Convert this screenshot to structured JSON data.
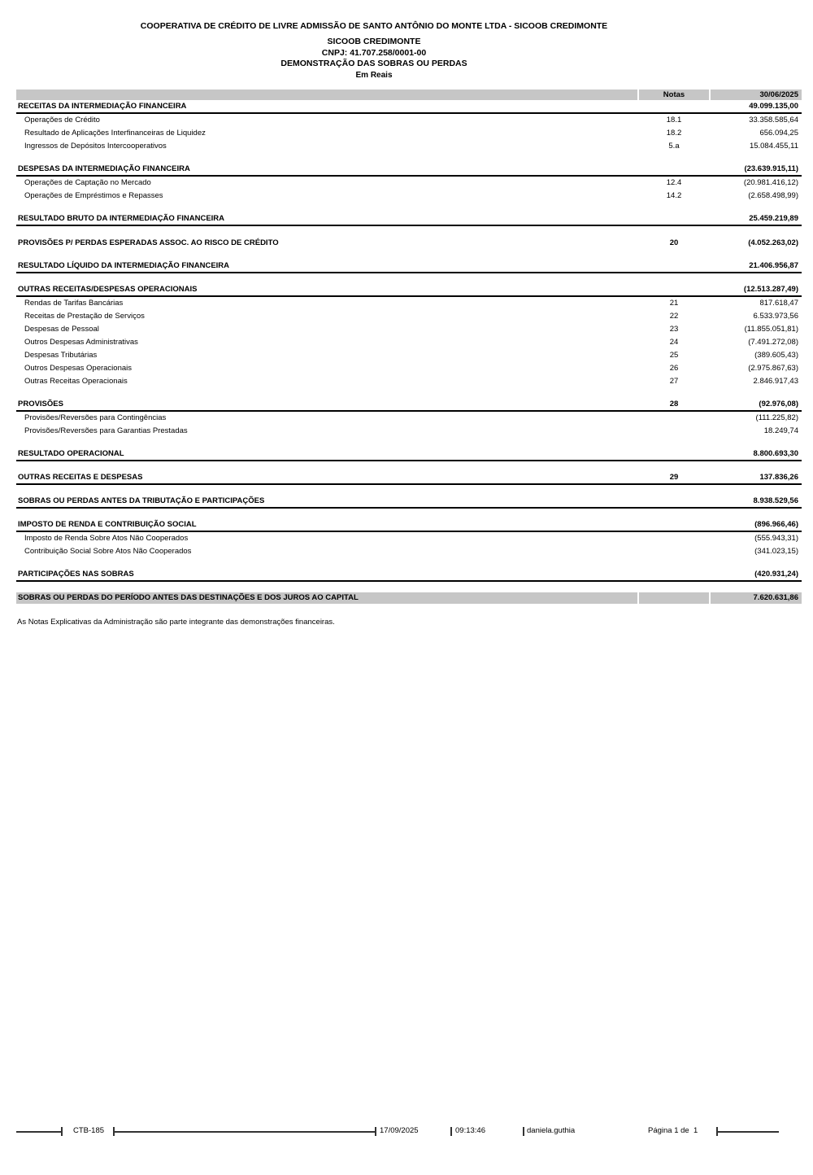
{
  "header": {
    "company": "COOPERATIVA DE CRÉDITO DE LIVRE ADMISSÃO DE SANTO ANTÔNIO DO MONTE LTDA - SICOOB CREDIMONTE",
    "entity": "SICOOB CREDIMONTE",
    "cnpj": "CNPJ: 41.707.258/0001-00",
    "statement_title": "DEMONSTRAÇÃO DAS SOBRAS OU PERDAS",
    "currency_note": "Em Reais"
  },
  "table": {
    "columns": {
      "notes_label": "Notas",
      "period_label": "30/06/2025"
    },
    "rows": [
      {
        "label": "RECEITAS DA INTERMEDIAÇÃO FINANCEIRA",
        "note": "",
        "value": "49.099.135,00",
        "style": "section"
      },
      {
        "label": "Operações de Crédito",
        "note": "18.1",
        "value": "33.358.585,64",
        "style": "item"
      },
      {
        "label": "Resultado de Aplicações Interfinanceiras de Liquidez",
        "note": "18.2",
        "value": "656.094,25",
        "style": "item"
      },
      {
        "label": "Ingressos de Depósitos Intercooperativos",
        "note": "5.a",
        "value": "15.084.455,11",
        "style": "item"
      },
      {
        "label": "DESPESAS DA INTERMEDIAÇÃO FINANCEIRA",
        "note": "",
        "value": "(23.639.915,11)",
        "style": "section"
      },
      {
        "label": "Operações de Captação no Mercado",
        "note": "12.4",
        "value": "(20.981.416,12)",
        "style": "item"
      },
      {
        "label": "Operações de Empréstimos e Repasses",
        "note": "14.2",
        "value": "(2.658.498,99)",
        "style": "item"
      },
      {
        "label": "RESULTADO BRUTO DA INTERMEDIAÇÃO FINANCEIRA",
        "note": "",
        "value": "25.459.219,89",
        "style": "section"
      },
      {
        "label": "PROVISÕES P/ PERDAS ESPERADAS ASSOC. AO RISCO DE CRÉDITO",
        "note": "20",
        "value": "(4.052.263,02)",
        "style": "bold"
      },
      {
        "label": "RESULTADO LÍQUIDO DA INTERMEDIAÇÃO FINANCEIRA",
        "note": "",
        "value": "21.406.956,87",
        "style": "section"
      },
      {
        "label": "OUTRAS RECEITAS/DESPESAS OPERACIONAIS",
        "note": "",
        "value": "(12.513.287,49)",
        "style": "section"
      },
      {
        "label": "Rendas de Tarifas Bancárias",
        "note": "21",
        "value": "817.618,47",
        "style": "item"
      },
      {
        "label": "Receitas de Prestação de Serviços",
        "note": "22",
        "value": "6.533.973,56",
        "style": "item"
      },
      {
        "label": "Despesas de Pessoal",
        "note": "23",
        "value": "(11.855.051,81)",
        "style": "item"
      },
      {
        "label": "Outros Despesas Administrativas",
        "note": "24",
        "value": "(7.491.272,08)",
        "style": "item"
      },
      {
        "label": "Despesas Tributárias",
        "note": "25",
        "value": "(389.605,43)",
        "style": "item"
      },
      {
        "label": "Outros Despesas Operacionais",
        "note": "26",
        "value": "(2.975.867,63)",
        "style": "item"
      },
      {
        "label": "Outras Receitas Operacionais",
        "note": "27",
        "value": "2.846.917,43",
        "style": "item"
      },
      {
        "label": "PROVISÕES",
        "note": "28",
        "value": "(92.976,08)",
        "style": "section"
      },
      {
        "label": "Provisões/Reversões para Contingências",
        "note": "",
        "value": "(111.225,82)",
        "style": "item"
      },
      {
        "label": "Provisões/Reversões para Garantias Prestadas",
        "note": "",
        "value": "18.249,74",
        "style": "item"
      },
      {
        "label": "RESULTADO OPERACIONAL",
        "note": "",
        "value": "8.800.693,30",
        "style": "section"
      },
      {
        "label": "OUTRAS RECEITAS E DESPESAS",
        "note": "29",
        "value": "137.836,26",
        "style": "section"
      },
      {
        "label": "SOBRAS OU PERDAS ANTES DA TRIBUTAÇÃO E PARTICIPAÇÕES",
        "note": "",
        "value": "8.938.529,56",
        "style": "section"
      },
      {
        "label": "IMPOSTO DE RENDA E CONTRIBUIÇÃO SOCIAL",
        "note": "",
        "value": "(896.966,46)",
        "style": "section"
      },
      {
        "label": "Imposto de Renda Sobre Atos Não Cooperados",
        "note": "",
        "value": "(555.943,31)",
        "style": "item"
      },
      {
        "label": "Contribuição Social Sobre Atos Não Cooperados",
        "note": "",
        "value": "(341.023,15)",
        "style": "item"
      },
      {
        "label": "PARTICIPAÇÕES NAS SOBRAS",
        "note": "",
        "value": "(420.931,24)",
        "style": "section"
      },
      {
        "label": "SOBRAS OU PERDAS DO PERÍODO ANTES DAS DESTINAÇÕES E DOS JUROS AO CAPITAL",
        "note": "",
        "value": "7.620.631,86",
        "style": "total"
      }
    ]
  },
  "footnote": "As Notas Explicativas da Administração são parte integrante das demonstrações financeiras.",
  "footer": {
    "report_code": "CTB-185",
    "date": "17/09/2025",
    "time": "09:13:46",
    "user": "daniela.guthia",
    "page": "Página 1 de  1"
  },
  "colors": {
    "header_bar_bg": "#c6c6c6",
    "total_row_bg": "#c6c6c6",
    "rule": "#000000",
    "footer_line": "#333333"
  }
}
